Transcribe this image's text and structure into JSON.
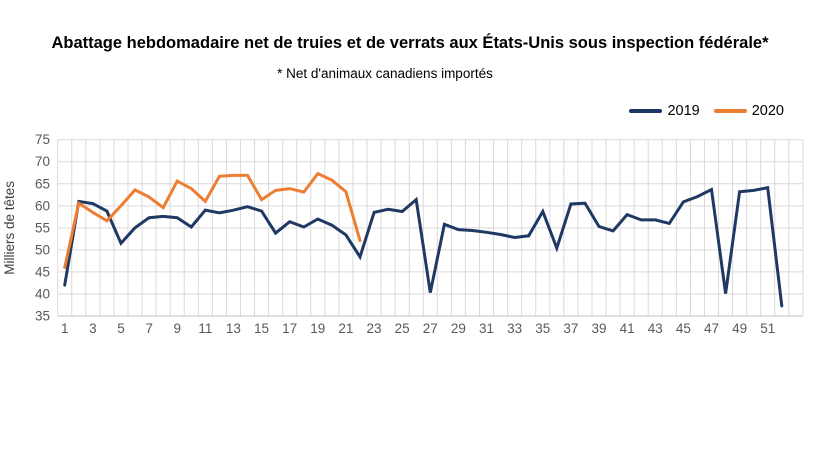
{
  "title": "Abattage hebdomadaire net de truies et de verrats aux États-Unis sous inspection fédérale*",
  "subtitle": "* Net d'animaux canadiens importés",
  "legend": {
    "items": [
      {
        "label": "2019",
        "color": "#1f3864"
      },
      {
        "label": "2020",
        "color": "#ed7d31"
      }
    ]
  },
  "chart_data": {
    "type": "line",
    "title": "Abattage hebdomadaire net de truies et de verrats aux États-Unis sous inspection fédérale*",
    "subtitle": "* Net d'animaux canadiens importés",
    "xlabel": "",
    "ylabel": "Milliers de têtes",
    "ylim": [
      35,
      75
    ],
    "yticks": [
      35,
      40,
      45,
      50,
      55,
      60,
      65,
      70,
      75
    ],
    "xticks": [
      1,
      3,
      5,
      7,
      9,
      11,
      13,
      15,
      17,
      19,
      21,
      23,
      25,
      27,
      29,
      31,
      33,
      35,
      37,
      39,
      41,
      43,
      45,
      47,
      49,
      51
    ],
    "x": [
      1,
      2,
      3,
      4,
      5,
      6,
      7,
      8,
      9,
      10,
      11,
      12,
      13,
      14,
      15,
      16,
      17,
      18,
      19,
      20,
      21,
      22,
      23,
      24,
      25,
      26,
      27,
      28,
      29,
      30,
      31,
      32,
      33,
      34,
      35,
      36,
      37,
      38,
      39,
      40,
      41,
      42,
      43,
      44,
      45,
      46,
      47,
      48,
      49,
      50,
      51,
      52
    ],
    "grid": true,
    "legend_position": "top-right",
    "series": [
      {
        "name": "2019",
        "color": "#1f3864",
        "values": [
          42,
          61,
          60.5,
          58.8,
          51.5,
          55,
          57.3,
          57.6,
          57.3,
          55.2,
          59,
          58.4,
          59,
          59.8,
          58.8,
          53.8,
          56.4,
          55.2,
          57,
          55.6,
          53.4,
          48.4,
          58.5,
          59.2,
          58.7,
          61.4,
          40.3,
          55.8,
          54.6,
          54.4,
          54,
          53.5,
          52.8,
          53.2,
          58.7,
          50.4,
          60.4,
          60.6,
          55.3,
          54.3,
          58,
          56.8,
          56.8,
          56,
          60.9,
          62.1,
          63.7,
          40.1,
          63.2,
          63.5,
          64.1,
          37.3
        ]
      },
      {
        "name": "2020",
        "color": "#ed7d31",
        "values": [
          46,
          60.6,
          58.5,
          56.6,
          60,
          63.6,
          62,
          59.6,
          65.6,
          63.9,
          61,
          66.7,
          66.9,
          66.9,
          61.4,
          63.5,
          63.9,
          63.1,
          67.3,
          65.8,
          63.2,
          52.1
        ]
      }
    ]
  },
  "colors": {
    "background": "#ffffff",
    "grid": "#d9d9d9",
    "axis": "#bfbfbf",
    "tick_label": "#595959",
    "axis_title": "#404040",
    "series_2019": "#1f3864",
    "series_2020": "#ed7d31"
  }
}
